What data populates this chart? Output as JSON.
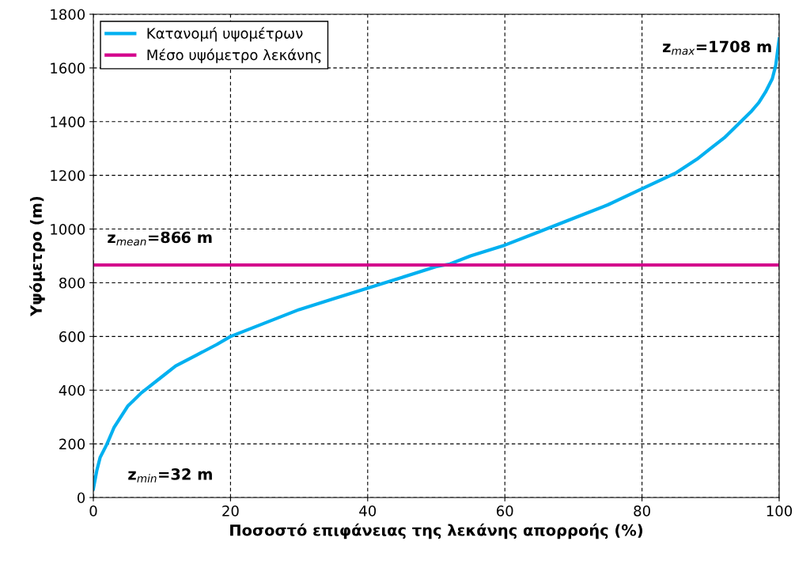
{
  "chart_data": {
    "type": "line",
    "xlabel": "Ποσοστό επιφάνειας της λεκάνης απορροής (%)",
    "ylabel": "Υψόμετρο (m)",
    "series": [
      {
        "name": "Κατανομή υψομέτρων",
        "color": "#00b0f0",
        "x": [
          0,
          0.5,
          1,
          2,
          3,
          4,
          5,
          7,
          8,
          10,
          12,
          15,
          18,
          20,
          25,
          30,
          35,
          40,
          45,
          50,
          52,
          55,
          60,
          65,
          70,
          75,
          80,
          85,
          88,
          90,
          92,
          94,
          96,
          97,
          98,
          99,
          99.5,
          100
        ],
        "values": [
          32,
          100,
          150,
          200,
          260,
          300,
          340,
          390,
          410,
          450,
          490,
          530,
          570,
          600,
          650,
          700,
          740,
          780,
          820,
          860,
          870,
          900,
          940,
          990,
          1040,
          1090,
          1150,
          1210,
          1260,
          1300,
          1340,
          1390,
          1440,
          1470,
          1510,
          1560,
          1610,
          1708
        ]
      },
      {
        "name": "Μέσο υψόμετρο λεκάνης",
        "color": "#d4008c",
        "x": [
          0,
          100
        ],
        "values": [
          866,
          866
        ]
      }
    ],
    "xlim": [
      0,
      100
    ],
    "xticks": [
      0,
      20,
      40,
      60,
      80,
      100
    ],
    "ylim": [
      0,
      1800
    ],
    "yticks": [
      0,
      200,
      400,
      600,
      800,
      1000,
      1200,
      1400,
      1600,
      1800
    ],
    "grid": true,
    "legend": "top left",
    "annotations": [
      "z$_{max}$=1708 m",
      "z$_{mean}$=866 m",
      "z$_{min}$=32 m"
    ]
  }
}
